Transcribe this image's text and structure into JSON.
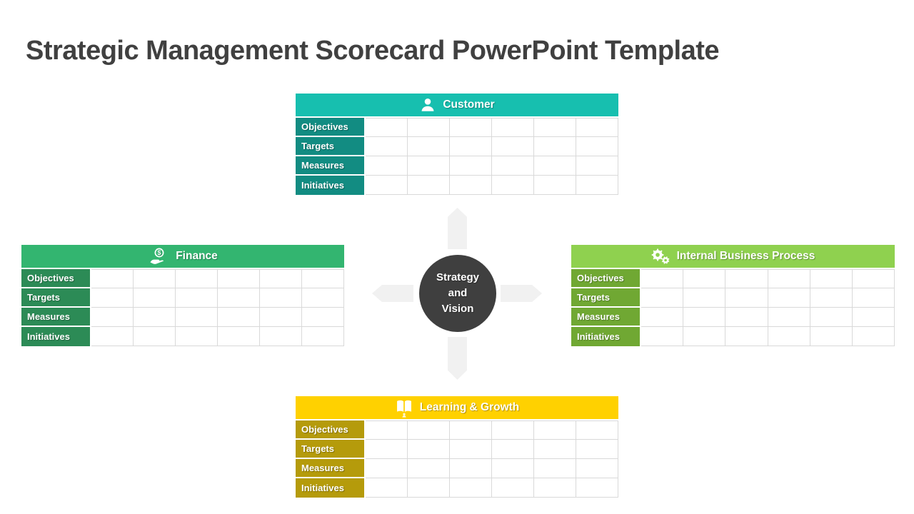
{
  "title": "Strategic Management Scorecard PowerPoint Template",
  "title_color": "#404040",
  "grid_border_color": "#D9D9D9",
  "row_labels": [
    "Objectives",
    "Targets",
    "Measures",
    "Initiatives"
  ],
  "data_columns": 6,
  "quadrants": [
    {
      "id": "customer",
      "title": "Customer",
      "icon": "person-icon",
      "header_bg": "#17BFAF",
      "label_bg": "#128C82",
      "position": "top"
    },
    {
      "id": "finance",
      "title": "Finance",
      "icon": "coin-hand-icon",
      "header_bg": "#33B570",
      "label_bg": "#2C8B56",
      "position": "left"
    },
    {
      "id": "internal-business-process",
      "title": "Internal Business Process",
      "icon": "gears-icon",
      "header_bg": "#8FD14F",
      "label_bg": "#70A833",
      "position": "right"
    },
    {
      "id": "learning-growth",
      "title": "Learning & Growth",
      "icon": "book-icon",
      "header_bg": "#FFD100",
      "label_bg": "#B59B0B",
      "position": "bottom"
    }
  ],
  "center": {
    "label_lines": [
      "Strategy",
      "and",
      "Vision"
    ],
    "bg": "#3F3F3F",
    "text_color": "#FFFFFF"
  },
  "arrows": {
    "color": "#F1F1F1",
    "directions": [
      "up",
      "left",
      "right",
      "down"
    ]
  }
}
